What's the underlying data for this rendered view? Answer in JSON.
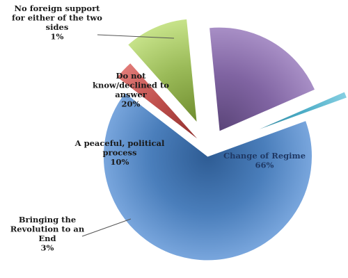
{
  "chart_data": {
    "type": "pie",
    "title": "",
    "unit": "%",
    "legend": "none",
    "slices": [
      {
        "name": "Change of Regime",
        "value": 66,
        "label": [
          "Change of Regime",
          "66%"
        ],
        "color": "#4A7EBB",
        "dark": "#2E5C94",
        "light": "#79A6DD",
        "text_color": "#1F3864"
      },
      {
        "name": "Bringing the Revolution to an End",
        "value": 3,
        "label": [
          "Bringing the",
          "Revolution to an",
          "End",
          "3%"
        ],
        "color": "#C0504D",
        "dark": "#8E2E2C",
        "light": "#E07A77",
        "text_color": "#1a1a1a"
      },
      {
        "name": "A peaceful, political process",
        "value": 10,
        "label": [
          "A peaceful, political",
          "process",
          "10%"
        ],
        "color": "#9BBB59",
        "dark": "#6F8C2E",
        "light": "#C7E38A",
        "text_color": "#1a1a1a"
      },
      {
        "name": "Do not know/declined to answer",
        "value": 20,
        "label": [
          "Do not",
          "know/declined to",
          "answer",
          "20%"
        ],
        "color": "#8064A2",
        "dark": "#5A4478",
        "light": "#A88FC6",
        "text_color": "#1a1a1a"
      },
      {
        "name": "No foreign support for either of the two sides",
        "value": 1,
        "label": [
          "No foreign support",
          "for either of the two",
          "sides",
          "1%"
        ],
        "color": "#4BACC6",
        "dark": "#2B7F96",
        "light": "#86CFE2",
        "text_color": "#1a1a1a"
      }
    ]
  }
}
